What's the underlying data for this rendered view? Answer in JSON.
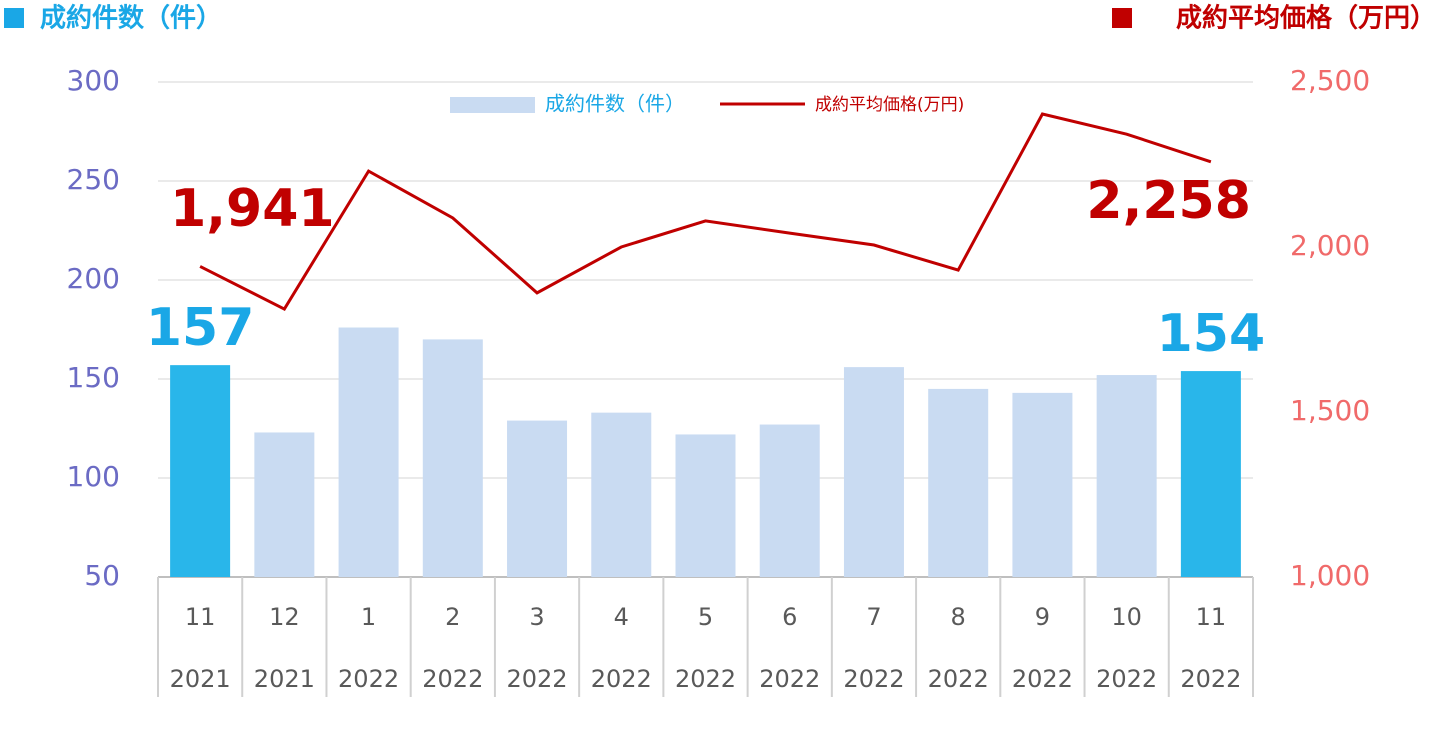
{
  "chart_data": {
    "type": "bar_line",
    "y_title": "成約件数（件）",
    "y2_title": "成約平均価格（万円）",
    "categories": [
      [
        "11",
        "2021"
      ],
      [
        "12",
        "2021"
      ],
      [
        "1",
        "2022"
      ],
      [
        "2",
        "2022"
      ],
      [
        "3",
        "2022"
      ],
      [
        "4",
        "2022"
      ],
      [
        "5",
        "2022"
      ],
      [
        "6",
        "2022"
      ],
      [
        "7",
        "2022"
      ],
      [
        "8",
        "2022"
      ],
      [
        "9",
        "2022"
      ],
      [
        "10",
        "2022"
      ],
      [
        "11",
        "2022"
      ]
    ],
    "series": [
      {
        "name": "成約件数（件）",
        "type": "bar",
        "color": "#c9dbf2",
        "colors": [
          "#29b6ea",
          "#c9dbf2",
          "#c9dbf2",
          "#c9dbf2",
          "#c9dbf2",
          "#c9dbf2",
          "#c9dbf2",
          "#c9dbf2",
          "#c9dbf2",
          "#c9dbf2",
          "#c9dbf2",
          "#c9dbf2",
          "#29b6ea"
        ],
        "values": [
          157,
          123,
          176,
          170,
          129,
          133,
          122,
          127,
          156,
          145,
          143,
          152,
          154
        ],
        "value_labels": [
          "157",
          null,
          null,
          null,
          null,
          null,
          null,
          null,
          null,
          null,
          null,
          null,
          "154"
        ],
        "label_color": "#1aa7e6"
      },
      {
        "name": "成約平均価格(万円)",
        "type": "line",
        "axis": "y2",
        "color": "#c00000",
        "values": [
          1941,
          1812,
          2230,
          2088,
          1861,
          2000,
          2079,
          2042,
          2006,
          1930,
          2403,
          2342,
          2258
        ],
        "value_labels": [
          "1,941",
          null,
          null,
          null,
          null,
          null,
          null,
          null,
          null,
          null,
          null,
          null,
          "2,258"
        ]
      }
    ],
    "ylim": [
      50,
      300
    ],
    "yticks": [
      50,
      100,
      150,
      200,
      250,
      300
    ],
    "y_color": "#6b6bc4",
    "y2lim": [
      1000,
      2500
    ],
    "y2ticks": [
      {
        "value": 1000,
        "label": "1,000"
      },
      {
        "value": 1500,
        "label": "1,500"
      },
      {
        "value": 2000,
        "label": "2,000"
      },
      {
        "value": 2500,
        "label": "2,500"
      }
    ],
    "y2_color": "#f06a6a",
    "grid": true,
    "legend": "top"
  }
}
